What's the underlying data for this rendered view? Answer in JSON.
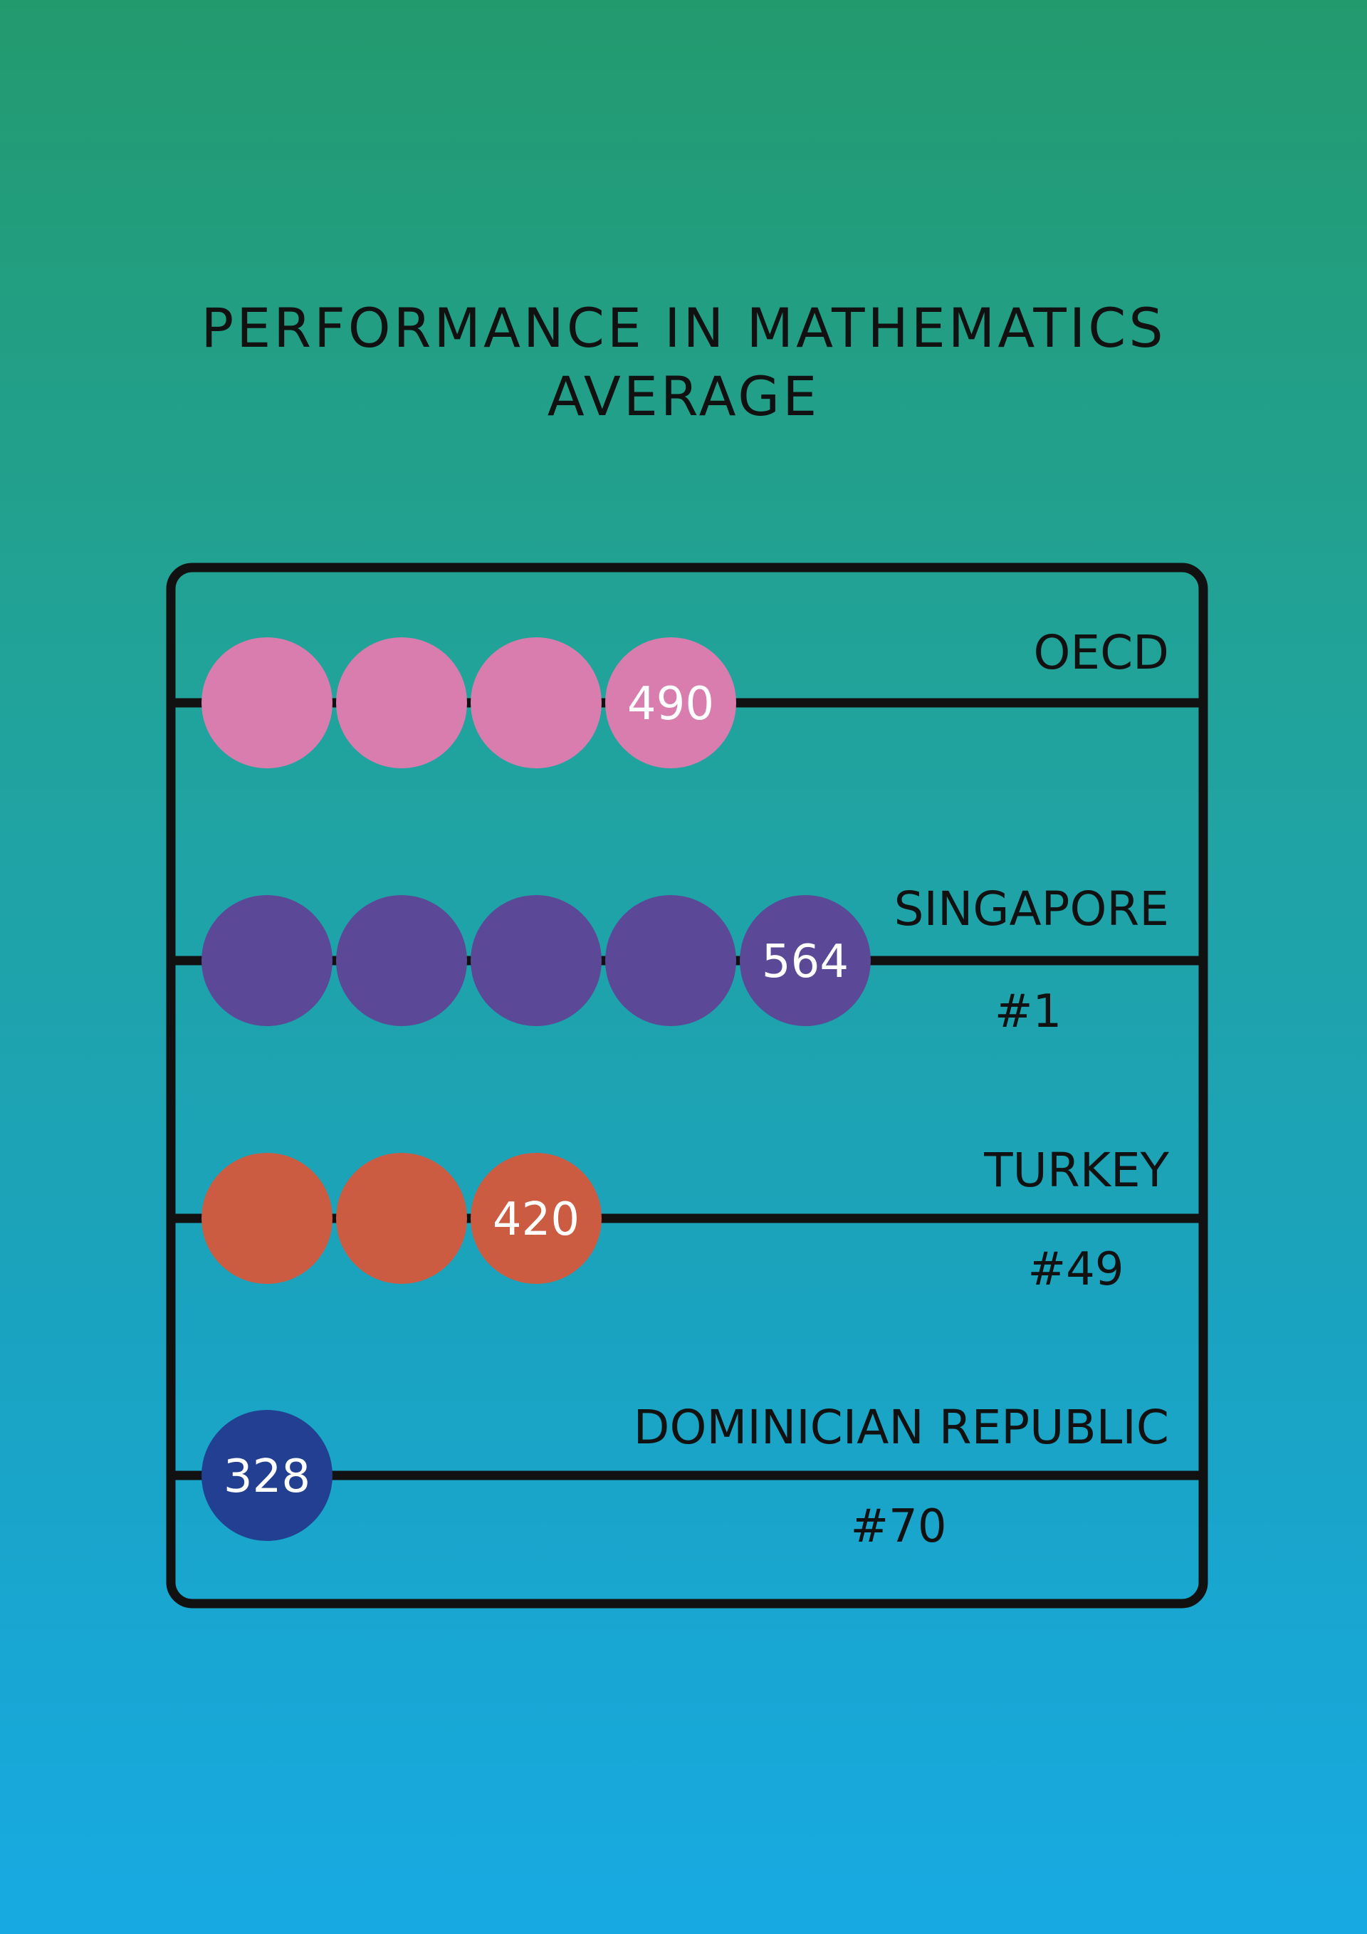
{
  "chart_data": {
    "type": "bar",
    "title": [
      "PERFORMANCE IN MATHEMATICS",
      "AVERAGE"
    ],
    "categories": [
      "OECD",
      "SINGAPORE",
      "TURKEY",
      "DOMINICIAN REPUBLIC"
    ],
    "ranks": [
      "",
      "#1",
      "#49",
      "#70"
    ],
    "values": [
      490,
      564,
      420,
      328
    ],
    "bead_counts": [
      4,
      5,
      3,
      1
    ],
    "colors": [
      "#d97daf",
      "#5b4896",
      "#cc5c41",
      "#223f91"
    ],
    "frame_color": "#111111",
    "grid": false,
    "legend": "none"
  }
}
